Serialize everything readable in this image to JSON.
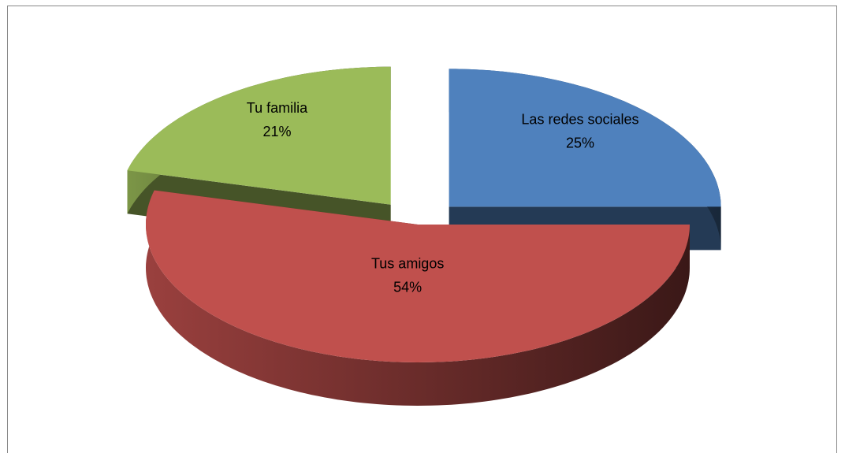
{
  "chart_data": {
    "type": "pie",
    "categories": [
      "Las redes sociales",
      "Tus amigos",
      "Tu familia"
    ],
    "values": [
      25,
      54,
      21
    ],
    "value_labels": [
      "25%",
      "54%",
      "21%"
    ],
    "colors": [
      "#4f81bd",
      "#c0504d",
      "#9bbb59"
    ]
  }
}
